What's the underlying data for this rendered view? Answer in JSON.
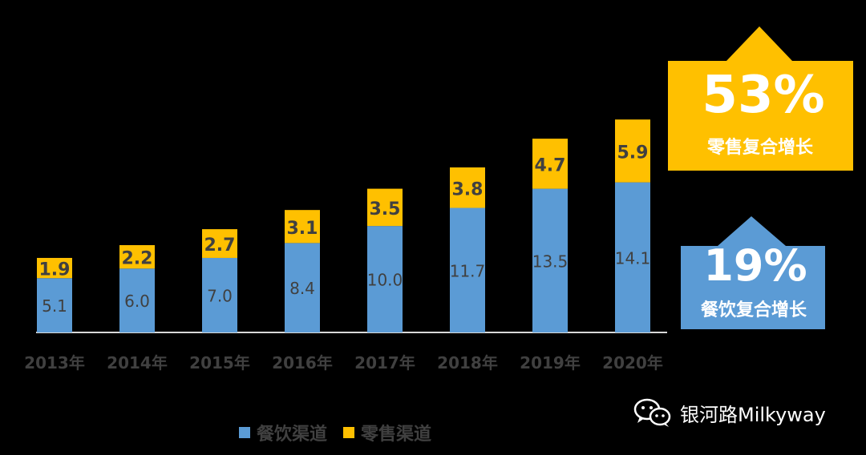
{
  "chart_data": {
    "type": "bar",
    "stacked": true,
    "categories": [
      "2013年",
      "2014年",
      "2015年",
      "2016年",
      "2017年",
      "2018年",
      "2019年",
      "2020年"
    ],
    "series": [
      {
        "name": "餐饮渠道",
        "values": [
          5.1,
          6.0,
          7.0,
          8.4,
          10.0,
          11.7,
          13.5,
          14.1
        ]
      },
      {
        "name": "零售渠道",
        "values": [
          1.9,
          2.2,
          2.7,
          3.1,
          3.5,
          3.8,
          4.7,
          5.9
        ]
      }
    ],
    "value_labels": {
      "餐饮渠道": [
        "5.1",
        "6.0",
        "7.0",
        "8.4",
        "10.0",
        "11.7",
        "13.5",
        "14.1"
      ],
      "零售渠道": [
        "1.9",
        "2.2",
        "2.7",
        "3.1",
        "3.5",
        "3.8",
        "4.7",
        "5.9"
      ]
    },
    "legend_position": "bottom",
    "grid": false
  },
  "colors": {
    "food_service": "#5B9BD5",
    "retail": "#FFC000",
    "label_text": "#404040",
    "axis": "#D9D9D9",
    "background": "#000000"
  },
  "callouts": {
    "retail": {
      "value": "53%",
      "label": "零售复合增长"
    },
    "food_service": {
      "value": "19%",
      "label": "餐饮复合增长"
    }
  },
  "watermark": {
    "text": "银河路Milkyway",
    "icon": "wechat-icon"
  }
}
